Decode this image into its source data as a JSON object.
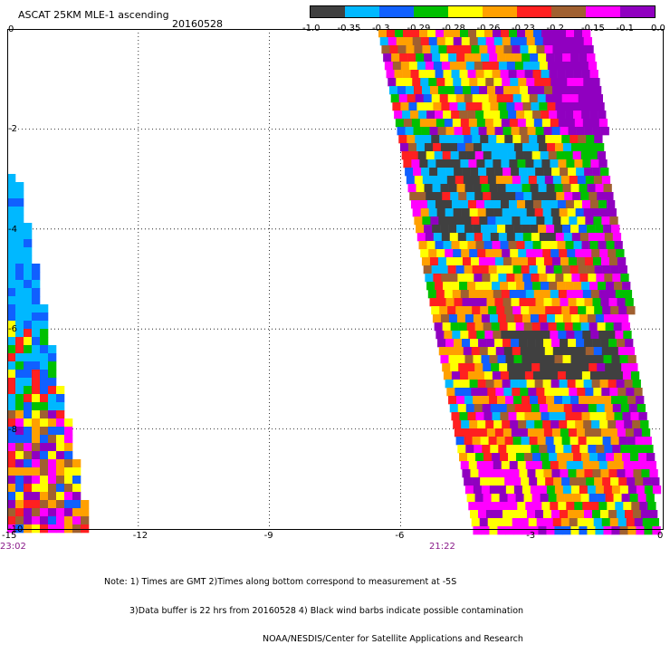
{
  "header": {
    "title": "ASCAT 25KM MLE-1 ascending",
    "date": "20160528"
  },
  "colorbar": {
    "colors": [
      "#404040",
      "#00b8ff",
      "#1060ff",
      "#00c000",
      "#ffff00",
      "#ffa000",
      "#ff2020",
      "#a06030",
      "#ff00ff",
      "#9000c0"
    ],
    "tick_labels": [
      "-1.0",
      "-0.35",
      "-0.3",
      "-0.29",
      "-0.28",
      "-0.26",
      "-0.23",
      "-0.2",
      "-0.15",
      "-0.1",
      "0.0"
    ]
  },
  "axes": {
    "x_ticks": [
      "-15",
      "-12",
      "-9",
      "-6",
      "-3",
      "0"
    ],
    "y_ticks": [
      "0",
      "-2",
      "-4",
      "-6",
      "-8",
      "-10"
    ],
    "time_labels": [
      "23:02",
      "21:22"
    ]
  },
  "notes": [
    "Note: 1) Times are GMT 2)Times along bottom correspond to measurement at -5S",
    "3)Data buffer is 22 hrs from 20160528 4) Black wind barbs indicate possible contamination",
    "NOAA/NESDIS/Center for Satellite Applications and Research"
  ]
}
